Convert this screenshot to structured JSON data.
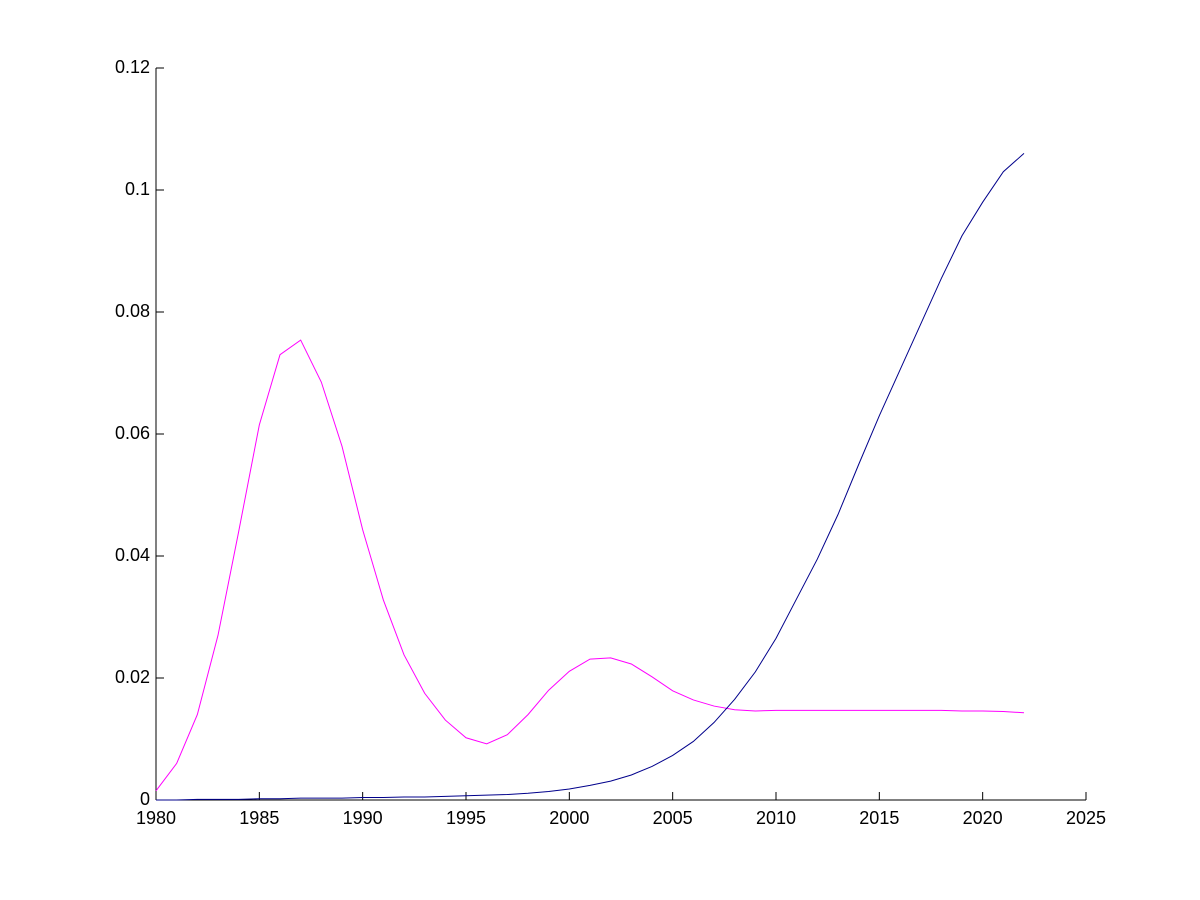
{
  "chart_data": {
    "type": "line",
    "x": [
      1980,
      1981,
      1982,
      1983,
      1984,
      1985,
      1986,
      1987,
      1988,
      1989,
      1990,
      1991,
      1992,
      1993,
      1994,
      1995,
      1996,
      1997,
      1998,
      1999,
      2000,
      2001,
      2002,
      2003,
      2004,
      2005,
      2006,
      2007,
      2008,
      2009,
      2010,
      2011,
      2012,
      2013,
      2014,
      2015,
      2016,
      2017,
      2018,
      2019,
      2020,
      2021,
      2022
    ],
    "series": [
      {
        "color": "#ff00ff",
        "values": [
          0.0015,
          0.006,
          0.014,
          0.027,
          0.044,
          0.0615,
          0.073,
          0.0754,
          0.0685,
          0.058,
          0.0443,
          0.0328,
          0.0238,
          0.0175,
          0.0131,
          0.0102,
          0.0092,
          0.0107,
          0.014,
          0.018,
          0.0211,
          0.0231,
          0.0233,
          0.0223,
          0.0202,
          0.0179,
          0.0164,
          0.0154,
          0.0148,
          0.0146,
          0.0147,
          0.0147,
          0.0147,
          0.0147,
          0.0147,
          0.0147,
          0.0147,
          0.0147,
          0.0147,
          0.0146,
          0.0146,
          0.0145,
          0.0143
        ]
      },
      {
        "color": "#00008b",
        "values": [
          0,
          0,
          0.0001,
          0.0001,
          0.0001,
          0.0002,
          0.0002,
          0.0003,
          0.0003,
          0.0003,
          0.0004,
          0.0004,
          0.0005,
          0.0005,
          0.0006,
          0.0007,
          0.0008,
          0.0009,
          0.0011,
          0.0014,
          0.0018,
          0.0024,
          0.0031,
          0.0041,
          0.0055,
          0.0073,
          0.0096,
          0.0127,
          0.0165,
          0.021,
          0.0265,
          0.033,
          0.0395,
          0.0468,
          0.055,
          0.063,
          0.0705,
          0.078,
          0.0855,
          0.0925,
          0.098,
          0.103,
          0.106
        ]
      }
    ],
    "xlim": [
      1980,
      2025
    ],
    "xticks": [
      1980,
      1985,
      1990,
      1995,
      2000,
      2005,
      2010,
      2015,
      2020,
      2025
    ],
    "ylim": [
      0,
      0.12
    ],
    "yticks": [
      0,
      0.02,
      0.04,
      0.06,
      0.08,
      0.1,
      0.12
    ]
  }
}
